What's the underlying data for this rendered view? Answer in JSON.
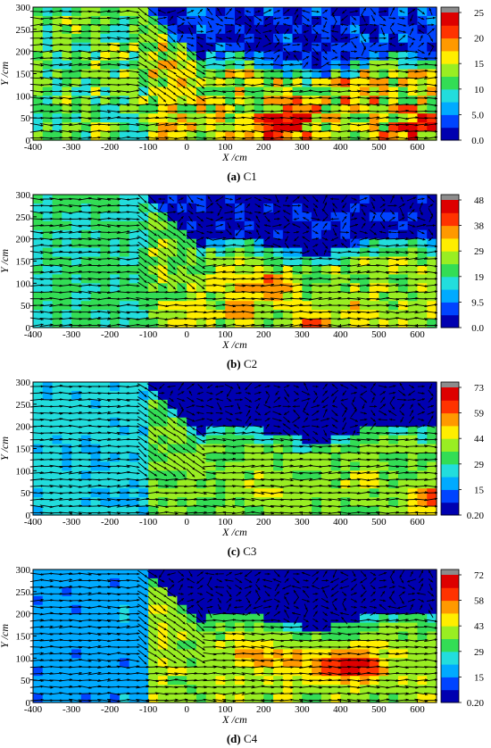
{
  "chart_data": [
    {
      "type": "heatmap",
      "caption_letter": "(a)",
      "caption_text": " C1",
      "xlabel": "X /cm",
      "ylabel": "Y /cm",
      "xlim": [
        -400,
        650
      ],
      "ylim": [
        0,
        300
      ],
      "xticks": [
        -400,
        -300,
        -200,
        -100,
        0,
        100,
        200,
        300,
        400,
        500,
        600
      ],
      "yticks": [
        0,
        50,
        100,
        150,
        200,
        250,
        300
      ],
      "colorbar_ticks": [
        "0.0",
        "5.0",
        "10",
        "15",
        "20",
        "25"
      ],
      "colorbar_min": 0,
      "colorbar_max": 25,
      "colorbar_top_color": "#8c8c8c",
      "field": {
        "high_max": 25,
        "low_min": 0.5,
        "upper_base": 12,
        "lower_base": 15,
        "hotspots": [
          [
            230,
            30,
            9
          ],
          [
            600,
            30,
            8
          ],
          [
            280,
            60,
            5
          ],
          [
            450,
            110,
            4
          ]
        ]
      }
    },
    {
      "type": "heatmap",
      "caption_letter": "(b)",
      "caption_text": " C2",
      "xlabel": "X /cm",
      "ylabel": "Y /cm",
      "xlim": [
        -400,
        650
      ],
      "ylim": [
        0,
        300
      ],
      "xticks": [
        -400,
        -300,
        -200,
        -100,
        0,
        100,
        200,
        300,
        400,
        500,
        600
      ],
      "yticks": [
        0,
        50,
        100,
        150,
        200,
        250,
        300
      ],
      "colorbar_ticks": [
        "0.0",
        "9.5",
        "19",
        "29",
        "38",
        "48"
      ],
      "colorbar_min": 0,
      "colorbar_max": 48,
      "colorbar_top_color": "#8c8c8c",
      "field": {
        "high_max": 48,
        "low_min": 1,
        "upper_base": 20,
        "lower_base": 26,
        "hotspots": [
          [
            200,
            95,
            14
          ],
          [
            330,
            10,
            16
          ],
          [
            150,
            40,
            8
          ],
          [
            480,
            40,
            6
          ]
        ]
      }
    },
    {
      "type": "heatmap",
      "caption_letter": "(c)",
      "caption_text": " C3",
      "xlabel": "X /cm",
      "ylabel": "Y /cm",
      "xlim": [
        -400,
        650
      ],
      "ylim": [
        0,
        300
      ],
      "xticks": [
        -400,
        -300,
        -200,
        -100,
        0,
        100,
        200,
        300,
        400,
        500,
        600
      ],
      "yticks": [
        0,
        50,
        100,
        150,
        200,
        250,
        300
      ],
      "colorbar_ticks": [
        "0.20",
        "15",
        "29",
        "44",
        "59",
        "73"
      ],
      "colorbar_min": 0.2,
      "colorbar_max": 73,
      "colorbar_top_color": "#8c8c8c",
      "field": {
        "high_max": 73,
        "low_min": 2,
        "upper_base": 24,
        "lower_base": 38,
        "hotspots": [
          [
            640,
            40,
            22
          ],
          [
            200,
            60,
            8
          ],
          [
            470,
            80,
            6
          ]
        ]
      }
    },
    {
      "type": "heatmap",
      "caption_letter": "(d)",
      "caption_text": " C4",
      "xlabel": "X /cm",
      "ylabel": "Y /cm",
      "xlim": [
        -400,
        650
      ],
      "ylim": [
        0,
        300
      ],
      "xticks": [
        -400,
        -300,
        -200,
        -100,
        0,
        100,
        200,
        300,
        400,
        500,
        600
      ],
      "yticks": [
        0,
        50,
        100,
        150,
        200,
        250,
        300
      ],
      "colorbar_ticks": [
        "0.20",
        "15",
        "29",
        "43",
        "58",
        "72"
      ],
      "colorbar_min": 0.2,
      "colorbar_max": 72,
      "colorbar_top_color": "#8c8c8c",
      "field": {
        "high_max": 72,
        "low_min": 2,
        "upper_base": 18,
        "lower_base": 40,
        "hotspots": [
          [
            450,
            85,
            28
          ],
          [
            380,
            75,
            18
          ],
          [
            180,
            100,
            14
          ],
          [
            270,
            90,
            10
          ]
        ]
      }
    }
  ],
  "colors": {
    "colormap": [
      "#0000b0",
      "#0044ff",
      "#00aaff",
      "#22dddd",
      "#33dd55",
      "#99ee22",
      "#ffee00",
      "#ff9900",
      "#ff3300",
      "#dd0000"
    ],
    "arrow": "#000000"
  }
}
